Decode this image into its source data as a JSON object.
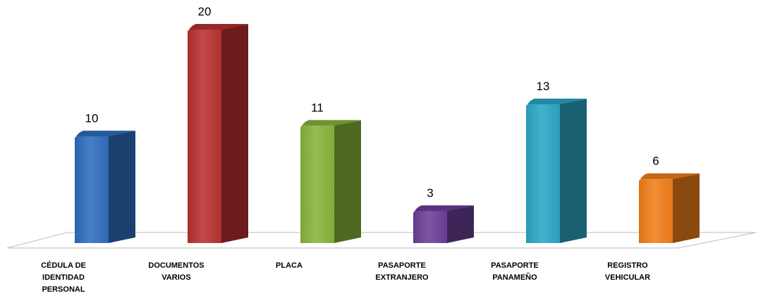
{
  "chart_data": {
    "type": "bar",
    "categories": [
      [
        "CÉDULA DE",
        "IDENTIDAD",
        "PERSONAL"
      ],
      [
        "DOCUMENTOS",
        "VARIOS"
      ],
      [
        "PLACA"
      ],
      [
        "PASAPORTE",
        "EXTRANJERO"
      ],
      [
        "PASAPORTE",
        "PANAMEÑO"
      ],
      [
        "REGISTRO",
        "VEHICULAR"
      ]
    ],
    "values": [
      10,
      20,
      11,
      3,
      13,
      6
    ],
    "value_labels": [
      "10",
      "20",
      "11",
      "3",
      "13",
      "6"
    ],
    "colors": [
      "#2f6dbd",
      "#b8312f",
      "#86b43a",
      "#6a3f96",
      "#2ba6c4",
      "#f07d1a"
    ],
    "ylim": [
      0,
      20
    ],
    "grid": false,
    "legend": "none",
    "style": "3d-column"
  }
}
